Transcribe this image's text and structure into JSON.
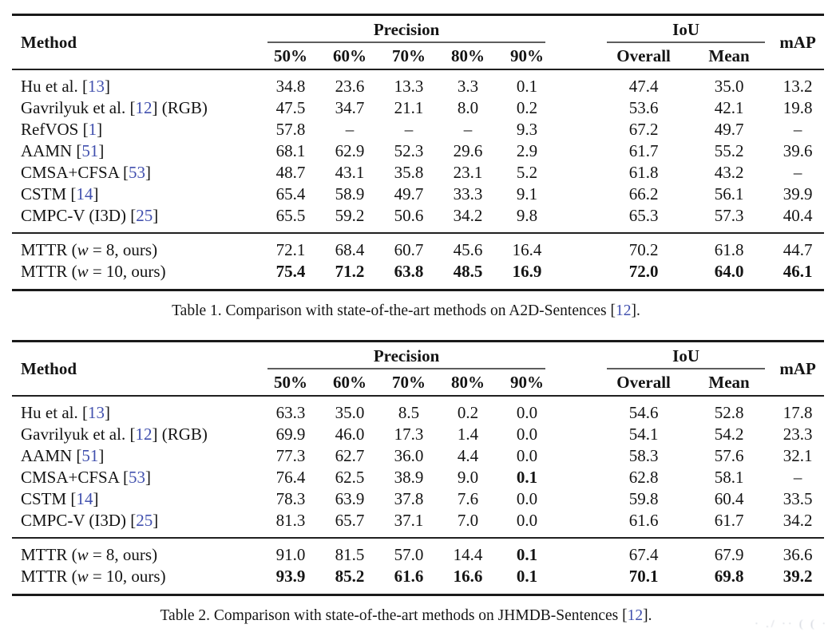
{
  "colors": {
    "citation": "#4150ae",
    "rule_heavy": "#1a1a1a",
    "rule_light": "#202020",
    "cmidrule": "#5e5e5e"
  },
  "watermark": {
    "text": "· ./ ·· ( ( ·"
  },
  "tables": [
    {
      "header": {
        "method": "Method",
        "groups": [
          {
            "label": "Precision",
            "cols": [
              "50%",
              "60%",
              "70%",
              "80%",
              "90%"
            ]
          },
          {
            "label": "IoU",
            "cols": [
              "Overall",
              "Mean"
            ]
          }
        ],
        "map": "mAP"
      },
      "ours_start": 7,
      "rows": [
        {
          "method": [
            {
              "t": "Hu et al. ["
            },
            {
              "t": "13",
              "s": "cite"
            },
            {
              "t": "]"
            }
          ],
          "values": [
            "34.8",
            "23.6",
            "13.3",
            "3.3",
            "0.1",
            "47.4",
            "35.0",
            "13.2"
          ],
          "bold": [
            false,
            false,
            false,
            false,
            false,
            false,
            false,
            false
          ]
        },
        {
          "method": [
            {
              "t": "Gavrilyuk et al. ["
            },
            {
              "t": "12",
              "s": "cite"
            },
            {
              "t": "] (RGB)"
            }
          ],
          "values": [
            "47.5",
            "34.7",
            "21.1",
            "8.0",
            "0.2",
            "53.6",
            "42.1",
            "19.8"
          ],
          "bold": [
            false,
            false,
            false,
            false,
            false,
            false,
            false,
            false
          ]
        },
        {
          "method": [
            {
              "t": "RefVOS ["
            },
            {
              "t": "1",
              "s": "cite"
            },
            {
              "t": "]"
            }
          ],
          "values": [
            "57.8",
            "–",
            "–",
            "–",
            "9.3",
            "67.2",
            "49.7",
            "–"
          ],
          "bold": [
            false,
            false,
            false,
            false,
            false,
            false,
            false,
            false
          ]
        },
        {
          "method": [
            {
              "t": "AAMN ["
            },
            {
              "t": "51",
              "s": "cite"
            },
            {
              "t": "]"
            }
          ],
          "values": [
            "68.1",
            "62.9",
            "52.3",
            "29.6",
            "2.9",
            "61.7",
            "55.2",
            "39.6"
          ],
          "bold": [
            false,
            false,
            false,
            false,
            false,
            false,
            false,
            false
          ]
        },
        {
          "method": [
            {
              "t": "CMSA+CFSA ["
            },
            {
              "t": "53",
              "s": "cite"
            },
            {
              "t": "]"
            }
          ],
          "values": [
            "48.7",
            "43.1",
            "35.8",
            "23.1",
            "5.2",
            "61.8",
            "43.2",
            "–"
          ],
          "bold": [
            false,
            false,
            false,
            false,
            false,
            false,
            false,
            false
          ]
        },
        {
          "method": [
            {
              "t": "CSTM ["
            },
            {
              "t": "14",
              "s": "cite"
            },
            {
              "t": "]"
            }
          ],
          "values": [
            "65.4",
            "58.9",
            "49.7",
            "33.3",
            "9.1",
            "66.2",
            "56.1",
            "39.9"
          ],
          "bold": [
            false,
            false,
            false,
            false,
            false,
            false,
            false,
            false
          ]
        },
        {
          "method": [
            {
              "t": "CMPC-V (I3D) ["
            },
            {
              "t": "25",
              "s": "cite"
            },
            {
              "t": "]"
            }
          ],
          "values": [
            "65.5",
            "59.2",
            "50.6",
            "34.2",
            "9.8",
            "65.3",
            "57.3",
            "40.4"
          ],
          "bold": [
            false,
            false,
            false,
            false,
            false,
            false,
            false,
            false
          ]
        },
        {
          "method": [
            {
              "t": "MTTR ("
            },
            {
              "t": "w",
              "s": "math"
            },
            {
              "t": " = 8, ours)"
            }
          ],
          "values": [
            "72.1",
            "68.4",
            "60.7",
            "45.6",
            "16.4",
            "70.2",
            "61.8",
            "44.7"
          ],
          "bold": [
            false,
            false,
            false,
            false,
            false,
            false,
            false,
            false
          ]
        },
        {
          "method": [
            {
              "t": "MTTR ("
            },
            {
              "t": "w",
              "s": "math"
            },
            {
              "t": " = 10, ours)"
            }
          ],
          "values": [
            "75.4",
            "71.2",
            "63.8",
            "48.5",
            "16.9",
            "72.0",
            "64.0",
            "46.1"
          ],
          "bold": [
            true,
            true,
            true,
            true,
            true,
            true,
            true,
            true
          ]
        }
      ],
      "caption": [
        {
          "t": "Table 1. Comparison with state-of-the-art methods on A2D-Sentences ["
        },
        {
          "t": "12",
          "s": "cite"
        },
        {
          "t": "]."
        }
      ]
    },
    {
      "header": {
        "method": "Method",
        "groups": [
          {
            "label": "Precision",
            "cols": [
              "50%",
              "60%",
              "70%",
              "80%",
              "90%"
            ]
          },
          {
            "label": "IoU",
            "cols": [
              "Overall",
              "Mean"
            ]
          }
        ],
        "map": "mAP"
      },
      "ours_start": 6,
      "rows": [
        {
          "method": [
            {
              "t": "Hu et al. ["
            },
            {
              "t": "13",
              "s": "cite"
            },
            {
              "t": "]"
            }
          ],
          "values": [
            "63.3",
            "35.0",
            "8.5",
            "0.2",
            "0.0",
            "54.6",
            "52.8",
            "17.8"
          ],
          "bold": [
            false,
            false,
            false,
            false,
            false,
            false,
            false,
            false
          ]
        },
        {
          "method": [
            {
              "t": "Gavrilyuk et al. ["
            },
            {
              "t": "12",
              "s": "cite"
            },
            {
              "t": "] (RGB)"
            }
          ],
          "values": [
            "69.9",
            "46.0",
            "17.3",
            "1.4",
            "0.0",
            "54.1",
            "54.2",
            "23.3"
          ],
          "bold": [
            false,
            false,
            false,
            false,
            false,
            false,
            false,
            false
          ]
        },
        {
          "method": [
            {
              "t": "AAMN ["
            },
            {
              "t": "51",
              "s": "cite"
            },
            {
              "t": "]"
            }
          ],
          "values": [
            "77.3",
            "62.7",
            "36.0",
            "4.4",
            "0.0",
            "58.3",
            "57.6",
            "32.1"
          ],
          "bold": [
            false,
            false,
            false,
            false,
            false,
            false,
            false,
            false
          ]
        },
        {
          "method": [
            {
              "t": "CMSA+CFSA ["
            },
            {
              "t": "53",
              "s": "cite"
            },
            {
              "t": "]"
            }
          ],
          "values": [
            "76.4",
            "62.5",
            "38.9",
            "9.0",
            "0.1",
            "62.8",
            "58.1",
            "–"
          ],
          "bold": [
            false,
            false,
            false,
            false,
            true,
            false,
            false,
            false
          ]
        },
        {
          "method": [
            {
              "t": "CSTM ["
            },
            {
              "t": "14",
              "s": "cite"
            },
            {
              "t": "]"
            }
          ],
          "values": [
            "78.3",
            "63.9",
            "37.8",
            "7.6",
            "0.0",
            "59.8",
            "60.4",
            "33.5"
          ],
          "bold": [
            false,
            false,
            false,
            false,
            false,
            false,
            false,
            false
          ]
        },
        {
          "method": [
            {
              "t": "CMPC-V (I3D) ["
            },
            {
              "t": "25",
              "s": "cite"
            },
            {
              "t": "]"
            }
          ],
          "values": [
            "81.3",
            "65.7",
            "37.1",
            "7.0",
            "0.0",
            "61.6",
            "61.7",
            "34.2"
          ],
          "bold": [
            false,
            false,
            false,
            false,
            false,
            false,
            false,
            false
          ]
        },
        {
          "method": [
            {
              "t": "MTTR ("
            },
            {
              "t": "w",
              "s": "math"
            },
            {
              "t": " = 8, ours)"
            }
          ],
          "values": [
            "91.0",
            "81.5",
            "57.0",
            "14.4",
            "0.1",
            "67.4",
            "67.9",
            "36.6"
          ],
          "bold": [
            false,
            false,
            false,
            false,
            true,
            false,
            false,
            false
          ]
        },
        {
          "method": [
            {
              "t": "MTTR ("
            },
            {
              "t": "w",
              "s": "math"
            },
            {
              "t": " = 10, ours)"
            }
          ],
          "values": [
            "93.9",
            "85.2",
            "61.6",
            "16.6",
            "0.1",
            "70.1",
            "69.8",
            "39.2"
          ],
          "bold": [
            true,
            true,
            true,
            true,
            true,
            true,
            true,
            true
          ]
        }
      ],
      "caption": [
        {
          "t": "Table 2. Comparison with state-of-the-art methods on JHMDB-Sentences ["
        },
        {
          "t": "12",
          "s": "cite"
        },
        {
          "t": "]."
        }
      ]
    }
  ]
}
